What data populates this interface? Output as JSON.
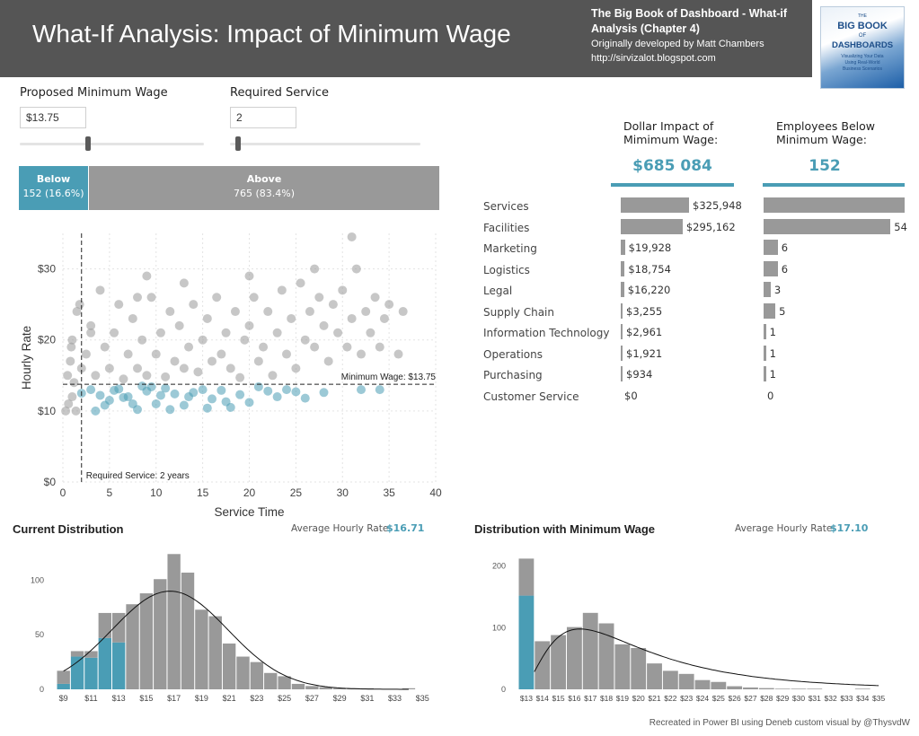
{
  "header": {
    "title": "What-If Analysis: Impact of Minimum Wage",
    "book_title": "The Big Book of Dashboard - What-if Analysis (Chapter 4)",
    "developer": "Originally developed by Matt Chambers",
    "url": "http://sirvizalot.blogspot.com",
    "book_cover": {
      "line1": "THE",
      "line2": "BIG BOOK",
      "line3": "OF",
      "line4": "DASHBOARDS",
      "line5": "Visualizing Your Data",
      "line6": "Using Real-World",
      "line7": "Business Scenarios"
    }
  },
  "controls": {
    "min_wage": {
      "label": "Proposed Minimum Wage",
      "value": "$13.75",
      "slider_fraction": 0.37
    },
    "service": {
      "label": "Required Service",
      "value": "2",
      "slider_fraction": 0.01
    }
  },
  "split": {
    "below": {
      "label": "Below",
      "value": "152 (16.6%)",
      "fraction": 0.166
    },
    "above": {
      "label": "Above",
      "value": "765 (83.4%)"
    }
  },
  "kpis": {
    "dollar": {
      "header": "Dollar Impact of Mimimum Wage:",
      "value": "$685 084"
    },
    "employees": {
      "header": "Employees Below Minimum Wage:",
      "value": "152"
    }
  },
  "departments": [
    {
      "name": "Services",
      "dollar": 325948,
      "dollar_label": "$325,948",
      "employees": 60,
      "employees_label": ""
    },
    {
      "name": "Facilities",
      "dollar": 295162,
      "dollar_label": "$295,162",
      "employees": 54,
      "employees_label": "54"
    },
    {
      "name": "Marketing",
      "dollar": 19928,
      "dollar_label": "$19,928",
      "employees": 6,
      "employees_label": "6"
    },
    {
      "name": "Logistics",
      "dollar": 18754,
      "dollar_label": "$18,754",
      "employees": 6,
      "employees_label": "6"
    },
    {
      "name": "Legal",
      "dollar": 16220,
      "dollar_label": "$16,220",
      "employees": 3,
      "employees_label": "3"
    },
    {
      "name": "Supply Chain",
      "dollar": 3255,
      "dollar_label": "$3,255",
      "employees": 5,
      "employees_label": "5"
    },
    {
      "name": "Information Technology",
      "dollar": 2961,
      "dollar_label": "$2,961",
      "employees": 1,
      "employees_label": "1"
    },
    {
      "name": "Operations",
      "dollar": 1921,
      "dollar_label": "$1,921",
      "employees": 1,
      "employees_label": "1"
    },
    {
      "name": "Purchasing",
      "dollar": 934,
      "dollar_label": "$934",
      "employees": 1,
      "employees_label": "1"
    },
    {
      "name": "Customer Service",
      "dollar": 0,
      "dollar_label": "$0",
      "employees": 0,
      "employees_label": "0"
    }
  ],
  "distributions": {
    "current": {
      "title": "Current Distribution",
      "avg_label": "Average Hourly Rate:",
      "avg_value": "$16.71"
    },
    "minwage": {
      "title": "Distribution with Minimum Wage",
      "avg_label": "Average Hourly Rate:",
      "avg_value": "$17.10"
    }
  },
  "footer": "Recreated in Power BI using Deneb custom visual by @ThysvdW",
  "colors": {
    "accent": "#4a9db5",
    "grey": "#999999",
    "header_bg": "#555555"
  },
  "chart_data": [
    {
      "type": "scatter",
      "title": "",
      "xlabel": "Service Time",
      "ylabel": "Hourly Rate",
      "xlim": [
        0,
        40
      ],
      "ylim": [
        0,
        35
      ],
      "x_ticks": [
        "0",
        "5",
        "10",
        "15",
        "20",
        "25",
        "30",
        "35",
        "40"
      ],
      "y_ticks": [
        "$0",
        "$10",
        "$20",
        "$30"
      ],
      "reference_lines": {
        "min_wage": 13.75,
        "min_wage_label": "Minimum Wage: $13.75",
        "service": 2,
        "service_label": "Required Service: 2 years"
      },
      "series": [
        {
          "name": "Below",
          "color": "#4a9db5",
          "points": [
            [
              2,
              12.5
            ],
            [
              3,
              13
            ],
            [
              4,
              12.2
            ],
            [
              5,
              11.5
            ],
            [
              6,
              13.1
            ],
            [
              7,
              12
            ],
            [
              8,
              10.2
            ],
            [
              9,
              12.8
            ],
            [
              10,
              11
            ],
            [
              11,
              13.2
            ],
            [
              12,
              12.4
            ],
            [
              13,
              10.8
            ],
            [
              14,
              12.6
            ],
            [
              15,
              13
            ],
            [
              16,
              11.7
            ],
            [
              17,
              12.9
            ],
            [
              18,
              10.5
            ],
            [
              19,
              12.3
            ],
            [
              20,
              11.2
            ],
            [
              22,
              12.8
            ],
            [
              24,
              13
            ],
            [
              26,
              11.8
            ],
            [
              28,
              12.6
            ],
            [
              32,
              13
            ],
            [
              34,
              13
            ],
            [
              3.5,
              10
            ],
            [
              5.5,
              12.9
            ],
            [
              7.5,
              11
            ],
            [
              9.5,
              13.4
            ],
            [
              11.5,
              10.2
            ],
            [
              13.5,
              12
            ],
            [
              15.5,
              10.4
            ],
            [
              17.5,
              11.3
            ],
            [
              21,
              13.4
            ],
            [
              23,
              12
            ],
            [
              25,
              12.7
            ],
            [
              4.5,
              10.8
            ],
            [
              6.5,
              11.9
            ],
            [
              8.5,
              13.5
            ],
            [
              10.5,
              12.2
            ]
          ]
        },
        {
          "name": "Above",
          "color": "#999999",
          "points": [
            [
              0.5,
              15
            ],
            [
              0.8,
              17
            ],
            [
              1,
              20
            ],
            [
              1.2,
              14
            ],
            [
              1.5,
              24
            ],
            [
              0.3,
              10
            ],
            [
              0.6,
              11
            ],
            [
              1,
              12
            ],
            [
              1.4,
              10
            ],
            [
              2.5,
              18
            ],
            [
              3,
              22
            ],
            [
              3.5,
              15
            ],
            [
              4,
              27
            ],
            [
              4.5,
              19
            ],
            [
              5,
              16
            ],
            [
              5.5,
              21
            ],
            [
              6,
              25
            ],
            [
              6.5,
              14.5
            ],
            [
              7,
              18
            ],
            [
              7.5,
              23
            ],
            [
              8,
              16
            ],
            [
              8.5,
              20
            ],
            [
              9,
              15
            ],
            [
              9.5,
              26
            ],
            [
              10,
              18
            ],
            [
              10.5,
              21
            ],
            [
              11,
              14.8
            ],
            [
              11.5,
              24
            ],
            [
              12,
              17
            ],
            [
              12.5,
              22
            ],
            [
              13,
              16
            ],
            [
              13.5,
              19
            ],
            [
              14,
              25
            ],
            [
              14.5,
              15.5
            ],
            [
              15,
              20
            ],
            [
              15.5,
              23
            ],
            [
              16,
              17
            ],
            [
              16.5,
              26
            ],
            [
              17,
              18
            ],
            [
              17.5,
              21
            ],
            [
              18,
              16
            ],
            [
              18.5,
              24
            ],
            [
              19,
              14.7
            ],
            [
              19.5,
              20
            ],
            [
              20,
              22
            ],
            [
              20.5,
              26
            ],
            [
              21,
              17
            ],
            [
              21.5,
              19
            ],
            [
              22,
              24
            ],
            [
              22.5,
              15
            ],
            [
              23,
              21
            ],
            [
              23.5,
              27
            ],
            [
              24,
              18
            ],
            [
              24.5,
              23
            ],
            [
              25,
              16
            ],
            [
              25.5,
              28
            ],
            [
              26,
              20
            ],
            [
              26.5,
              24
            ],
            [
              27,
              19
            ],
            [
              27.5,
              26
            ],
            [
              28,
              22
            ],
            [
              28.5,
              17
            ],
            [
              29,
              25
            ],
            [
              29.5,
              21
            ],
            [
              30,
              27
            ],
            [
              30.5,
              19
            ],
            [
              31,
              23
            ],
            [
              31.5,
              30
            ],
            [
              32,
              18
            ],
            [
              32.5,
              24
            ],
            [
              33,
              21
            ],
            [
              33.5,
              26
            ],
            [
              34,
              19
            ],
            [
              34.5,
              23
            ],
            [
              35,
              25
            ],
            [
              36,
              18
            ],
            [
              36.5,
              24
            ],
            [
              31,
              34.5
            ],
            [
              27,
              30
            ],
            [
              13,
              28
            ],
            [
              8,
              26
            ],
            [
              3,
              21
            ],
            [
              2,
              16
            ],
            [
              1.8,
              25
            ],
            [
              0.9,
              19
            ],
            [
              20,
              29
            ],
            [
              9,
              29
            ]
          ]
        }
      ]
    },
    {
      "type": "bar",
      "title": "Current Distribution",
      "categories": [
        "$9",
        "$10",
        "$11",
        "$12",
        "$13",
        "$14",
        "$15",
        "$16",
        "$17",
        "$18",
        "$19",
        "$20",
        "$21",
        "$22",
        "$23",
        "$24",
        "$25",
        "$26",
        "$27",
        "$28",
        "$29",
        "$30",
        "$31",
        "$32",
        "$33",
        "$34",
        "$35"
      ],
      "x_tick_labels": [
        "$9",
        "$11",
        "$13",
        "$15",
        "$17",
        "$19",
        "$21",
        "$23",
        "$25",
        "$27",
        "$29",
        "$31",
        "$33",
        "$35"
      ],
      "ylim": [
        0,
        130
      ],
      "y_ticks": [
        "0",
        "50",
        "100"
      ],
      "series": [
        {
          "name": "Below",
          "color": "#4a9db5",
          "values": [
            5,
            30,
            29,
            47,
            43,
            0,
            0,
            0,
            0,
            0,
            0,
            0,
            0,
            0,
            0,
            0,
            0,
            0,
            0,
            0,
            0,
            0,
            0,
            0,
            0,
            0,
            0
          ]
        },
        {
          "name": "Above",
          "color": "#999999",
          "values": [
            12,
            5,
            6,
            23,
            27,
            78,
            88,
            101,
            124,
            107,
            73,
            67,
            42,
            30,
            25,
            15,
            12,
            5,
            3,
            2,
            1,
            1,
            1,
            0,
            0,
            1,
            0
          ]
        }
      ],
      "curve": {
        "type": "normal",
        "mean": 16.71
      }
    },
    {
      "type": "bar",
      "title": "Distribution with Minimum Wage",
      "categories": [
        "$13",
        "$14",
        "$15",
        "$16",
        "$17",
        "$18",
        "$19",
        "$20",
        "$21",
        "$22",
        "$23",
        "$24",
        "$25",
        "$26",
        "$27",
        "$28",
        "$29",
        "$30",
        "$31",
        "$32",
        "$33",
        "$34",
        "$35"
      ],
      "ylim": [
        0,
        230
      ],
      "y_ticks": [
        "0",
        "100",
        "200"
      ],
      "series": [
        {
          "name": "Below",
          "color": "#4a9db5",
          "values": [
            152,
            0,
            0,
            0,
            0,
            0,
            0,
            0,
            0,
            0,
            0,
            0,
            0,
            0,
            0,
            0,
            0,
            0,
            0,
            0,
            0,
            0,
            0
          ]
        },
        {
          "name": "Above",
          "color": "#999999",
          "values": [
            60,
            78,
            88,
            101,
            124,
            107,
            73,
            67,
            42,
            30,
            25,
            15,
            12,
            5,
            3,
            2,
            1,
            1,
            1,
            0,
            0,
            1,
            0
          ]
        }
      ],
      "curve": {
        "type": "lognormal",
        "mean": 17.1
      }
    }
  ]
}
